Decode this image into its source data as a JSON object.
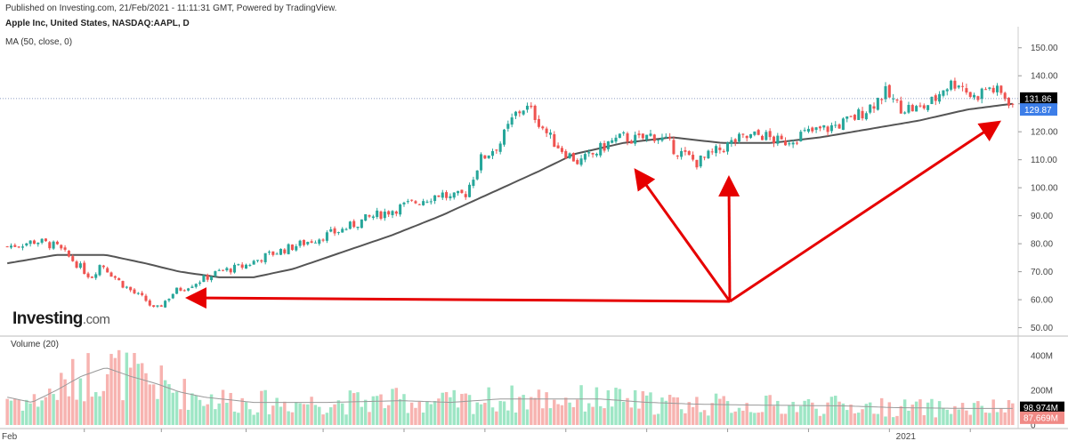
{
  "header": {
    "published": "Published on Investing.com, 21/Feb/2021 - 11:11:31 GMT, Powered by TradingView.",
    "symbol": "Apple Inc, United States, NASDAQ:AAPL, D",
    "indicator": "MA (50, close, 0)"
  },
  "logo": {
    "main": "Investing",
    "suffix": ".com"
  },
  "volume_label": "Volume (20)",
  "colors": {
    "up": "#26a69a",
    "down": "#ef5350",
    "ma": "#555555",
    "arrow": "#e60000",
    "last_price_bg": "#000000",
    "ma_price_bg": "#3d7ee8",
    "vol_up": "#9ee6c5",
    "vol_down": "#f7b3b0"
  },
  "chart_data": [
    {
      "type": "candlestick",
      "title": "Apple Inc, United States, NASDAQ:AAPL, D",
      "y_ticks": [
        "150.00",
        "140.00",
        "130.00",
        "120.00",
        "110.00",
        "100.00",
        "90.00",
        "80.00",
        "70.00",
        "60.00",
        "50.00"
      ],
      "x_ticks": [
        "Feb",
        "2021"
      ],
      "ylim": [
        47,
        155
      ],
      "last_price": "131.86",
      "ma_price": "129.87",
      "sessions": 262,
      "close_path": [
        [
          0,
          79
        ],
        [
          12,
          81
        ],
        [
          20,
          79
        ],
        [
          28,
          73
        ],
        [
          34,
          68
        ],
        [
          38,
          73
        ],
        [
          46,
          66
        ],
        [
          52,
          62
        ],
        [
          56,
          60
        ],
        [
          60,
          56
        ],
        [
          68,
          63
        ],
        [
          76,
          66
        ],
        [
          86,
          70
        ],
        [
          96,
          72
        ],
        [
          106,
          76
        ],
        [
          116,
          79
        ],
        [
          126,
          82
        ],
        [
          136,
          85
        ],
        [
          146,
          89
        ],
        [
          156,
          92
        ],
        [
          166,
          95
        ],
        [
          176,
          98
        ],
        [
          180,
          96
        ],
        [
          186,
          98
        ],
        [
          192,
          110
        ],
        [
          200,
          116
        ],
        [
          206,
          126
        ],
        [
          210,
          129
        ],
        [
          214,
          126
        ],
        [
          220,
          118
        ],
        [
          226,
          113
        ],
        [
          232,
          109
        ],
        [
          238,
          112
        ],
        [
          244,
          116
        ],
        [
          250,
          118
        ],
        [
          256,
          117
        ],
        [
          262,
          119
        ],
        [
          268,
          116
        ],
        [
          272,
          113
        ],
        [
          280,
          109
        ],
        [
          288,
          113
        ],
        [
          296,
          117
        ],
        [
          306,
          119
        ],
        [
          314,
          116
        ],
        [
          322,
          119
        ],
        [
          332,
          121
        ],
        [
          342,
          124
        ],
        [
          350,
          129
        ],
        [
          356,
          134
        ],
        [
          362,
          129
        ],
        [
          370,
          128
        ],
        [
          376,
          131
        ],
        [
          380,
          136
        ],
        [
          386,
          138
        ],
        [
          392,
          132
        ],
        [
          398,
          136
        ],
        [
          404,
          133
        ],
        [
          408,
          130
        ]
      ],
      "ma_path": [
        [
          0,
          73
        ],
        [
          20,
          76
        ],
        [
          40,
          76
        ],
        [
          56,
          73
        ],
        [
          70,
          70
        ],
        [
          86,
          68
        ],
        [
          100,
          68
        ],
        [
          116,
          71
        ],
        [
          136,
          77
        ],
        [
          156,
          83
        ],
        [
          176,
          90
        ],
        [
          196,
          98
        ],
        [
          216,
          106
        ],
        [
          230,
          112
        ],
        [
          250,
          116
        ],
        [
          270,
          118
        ],
        [
          290,
          116
        ],
        [
          310,
          116
        ],
        [
          330,
          118
        ],
        [
          350,
          121
        ],
        [
          370,
          124
        ],
        [
          390,
          128
        ],
        [
          408,
          130
        ]
      ]
    },
    {
      "type": "bar",
      "title": "Volume (20)",
      "y_ticks": [
        "400M",
        "200M",
        "0"
      ],
      "ylim": [
        0,
        450
      ],
      "last_volume": "98.974M",
      "last_volume_ma": "87.669M",
      "volume_path": [
        [
          0,
          160
        ],
        [
          10,
          130
        ],
        [
          20,
          200
        ],
        [
          30,
          280
        ],
        [
          40,
          330
        ],
        [
          50,
          280
        ],
        [
          60,
          240
        ],
        [
          70,
          190
        ],
        [
          80,
          160
        ],
        [
          100,
          130
        ],
        [
          130,
          130
        ],
        [
          160,
          140
        ],
        [
          180,
          130
        ],
        [
          200,
          150
        ],
        [
          220,
          150
        ],
        [
          240,
          150
        ],
        [
          260,
          130
        ],
        [
          280,
          120
        ],
        [
          300,
          115
        ],
        [
          340,
          110
        ],
        [
          360,
          100
        ],
        [
          390,
          95
        ],
        [
          408,
          95
        ]
      ]
    }
  ]
}
